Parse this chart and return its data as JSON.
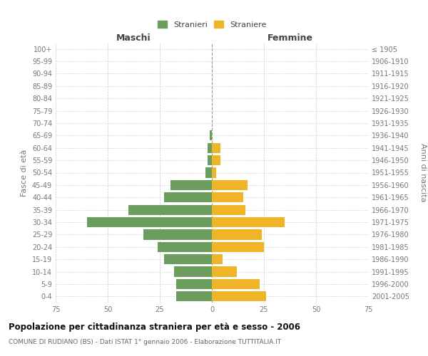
{
  "age_groups": [
    "100+",
    "95-99",
    "90-94",
    "85-89",
    "80-84",
    "75-79",
    "70-74",
    "65-69",
    "60-64",
    "55-59",
    "50-54",
    "45-49",
    "40-44",
    "35-39",
    "30-34",
    "25-29",
    "20-24",
    "15-19",
    "10-14",
    "5-9",
    "0-4"
  ],
  "birth_years": [
    "≤ 1905",
    "1906-1910",
    "1911-1915",
    "1916-1920",
    "1921-1925",
    "1926-1930",
    "1931-1935",
    "1936-1940",
    "1941-1945",
    "1946-1950",
    "1951-1955",
    "1956-1960",
    "1961-1965",
    "1966-1970",
    "1971-1975",
    "1976-1980",
    "1981-1985",
    "1986-1990",
    "1991-1995",
    "1996-2000",
    "2001-2005"
  ],
  "males": [
    0,
    0,
    0,
    0,
    0,
    0,
    0,
    1,
    2,
    2,
    3,
    20,
    23,
    40,
    60,
    33,
    26,
    23,
    18,
    17,
    17
  ],
  "females": [
    0,
    0,
    0,
    0,
    0,
    0,
    0,
    0,
    4,
    4,
    2,
    17,
    15,
    16,
    35,
    24,
    25,
    5,
    12,
    23,
    26
  ],
  "male_color": "#6b9e5e",
  "female_color": "#f0b429",
  "bar_height": 0.82,
  "xlim": 75,
  "title": "Popolazione per cittadinanza straniera per età e sesso - 2006",
  "subtitle": "COMUNE DI RUDIANO (BS) - Dati ISTAT 1° gennaio 2006 - Elaborazione TUTTITALIA.IT",
  "ylabel_left": "Fasce di età",
  "ylabel_right": "Anni di nascita",
  "xlabel_maschi": "Maschi",
  "xlabel_femmine": "Femmine",
  "legend_stranieri": "Stranieri",
  "legend_straniere": "Straniere",
  "background_color": "#ffffff",
  "grid_color": "#cccccc",
  "text_color": "#777777",
  "label_color": "#444444",
  "title_color": "#111111",
  "subtitle_color": "#666666"
}
